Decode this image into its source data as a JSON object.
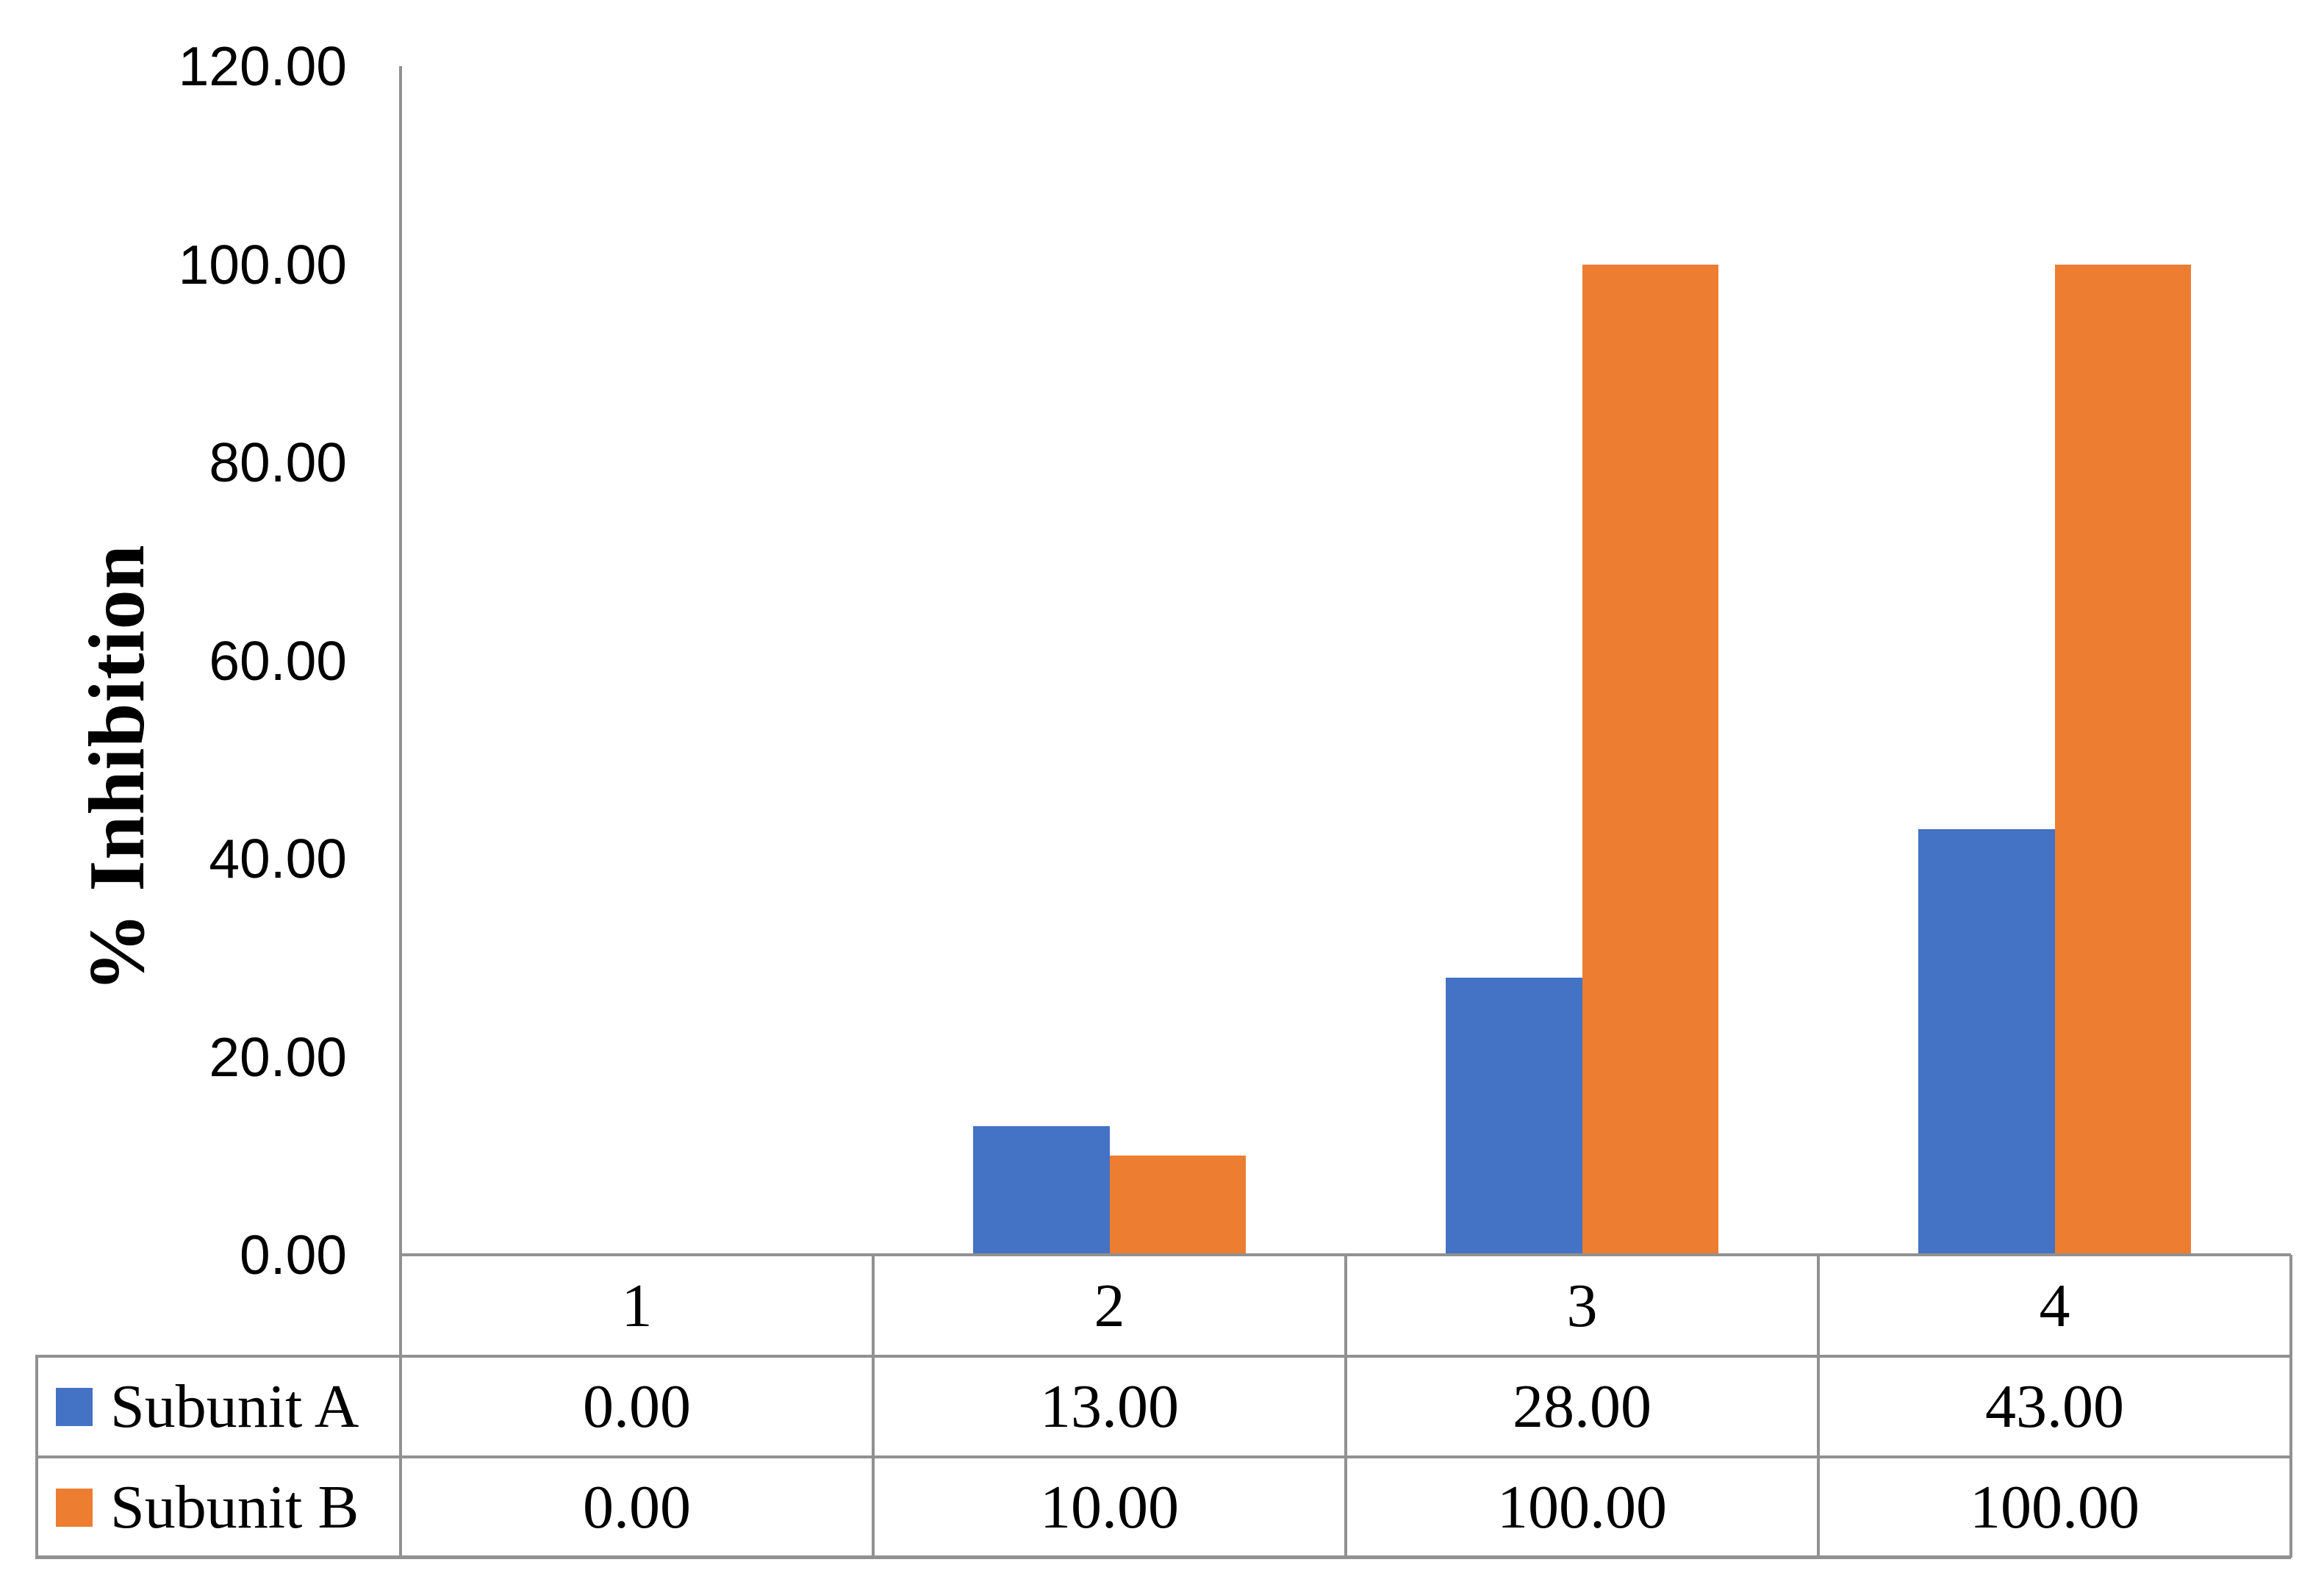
{
  "chart_data": {
    "type": "bar",
    "title": "",
    "categories": [
      "1",
      "2",
      "3",
      "4"
    ],
    "series": [
      {
        "name": "Subunit A",
        "color": "#4472C4",
        "values": [
          0,
          13,
          28,
          43
        ],
        "value_labels": [
          "0.00",
          "13.00",
          "28.00",
          "43.00"
        ]
      },
      {
        "name": "Subunit B",
        "color": "#ED7D31",
        "values": [
          0,
          10,
          100,
          100
        ],
        "value_labels": [
          "0.00",
          "10.00",
          "100.00",
          "100.00"
        ]
      }
    ],
    "xlabel": "",
    "ylabel": "% Inhibition",
    "ylim": [
      0,
      120
    ],
    "y_tick_step": 20,
    "y_ticks": [
      "120.00",
      "100.00",
      "80.00",
      "60.00",
      "40.00",
      "20.00",
      "0.00"
    ],
    "grid": false,
    "legend_position": "table-left-column",
    "axis_line_color": "#919191",
    "text_color": "#000000",
    "background_color": "#ffffff"
  }
}
